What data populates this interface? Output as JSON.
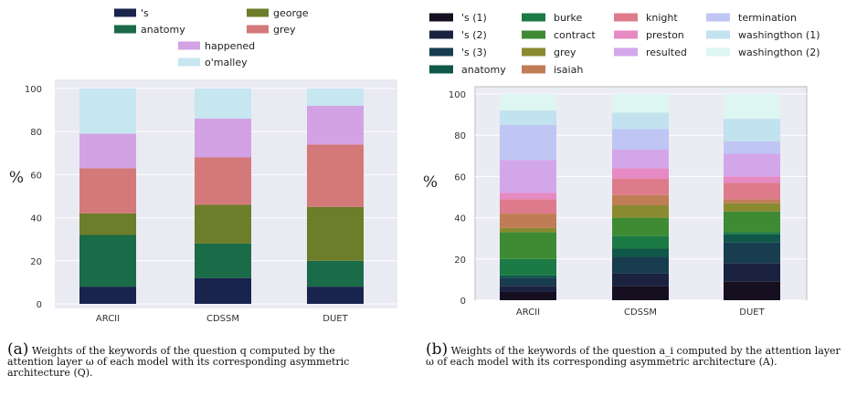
{
  "chart_data": [
    {
      "type": "bar",
      "stacked": true,
      "categories": [
        "ARCII",
        "CDSSM",
        "DUET"
      ],
      "ylabel": "%",
      "ylim": [
        0,
        100
      ],
      "yticks": [
        0,
        20,
        40,
        60,
        80,
        100
      ],
      "grid": true,
      "legend": "top",
      "series": [
        {
          "name": "'s",
          "color": "#18244d",
          "values": [
            8,
            12,
            8
          ]
        },
        {
          "name": "anatomy",
          "color": "#1a6b47",
          "values": [
            24,
            16,
            12
          ]
        },
        {
          "name": "george",
          "color": "#6d7d2a",
          "values": [
            10,
            18,
            25
          ]
        },
        {
          "name": "grey",
          "color": "#d3797a",
          "values": [
            21,
            22,
            29
          ]
        },
        {
          "name": "happened",
          "color": "#d2a2e4",
          "values": [
            16,
            18,
            18
          ]
        },
        {
          "name": "o'malley",
          "color": "#c6e6f0",
          "values": [
            21,
            14,
            8
          ]
        }
      ],
      "caption_label": "(a)",
      "caption_text": "Weights of the keywords of the question q computed by the attention layer ω of each model with its corresponding asymmetric architecture (Q)."
    },
    {
      "type": "bar",
      "stacked": true,
      "categories": [
        "ARCII",
        "CDSSM",
        "DUET"
      ],
      "ylabel": "%",
      "ylim": [
        0,
        100
      ],
      "yticks": [
        0,
        20,
        40,
        60,
        80,
        100
      ],
      "grid": true,
      "legend": "top",
      "series": [
        {
          "name": "'s (1)",
          "color": "#150f1f",
          "values": [
            4,
            7,
            9
          ]
        },
        {
          "name": "'s (2)",
          "color": "#1b2240",
          "values": [
            3,
            6,
            9
          ]
        },
        {
          "name": "'s (3)",
          "color": "#173d4f",
          "values": [
            4,
            8,
            10
          ]
        },
        {
          "name": "anatomy",
          "color": "#0f5748",
          "values": [
            1,
            4,
            4
          ]
        },
        {
          "name": "burke",
          "color": "#1c7a45",
          "values": [
            8,
            6,
            1
          ]
        },
        {
          "name": "contract",
          "color": "#3e8b34",
          "values": [
            13,
            9,
            10
          ]
        },
        {
          "name": "grey",
          "color": "#8a8a30",
          "values": [
            2,
            6,
            4
          ]
        },
        {
          "name": "isaiah",
          "color": "#c07d55",
          "values": [
            7,
            5,
            2
          ]
        },
        {
          "name": "knight",
          "color": "#de7b8b",
          "values": [
            7,
            8,
            8
          ]
        },
        {
          "name": "preston",
          "color": "#e58ac3",
          "values": [
            3,
            5,
            3
          ]
        },
        {
          "name": "resulted",
          "color": "#d3a6ea",
          "values": [
            16,
            9,
            11
          ]
        },
        {
          "name": "termination",
          "color": "#bfc6f3",
          "values": [
            17,
            10,
            6
          ]
        },
        {
          "name": "washingthon (1)",
          "color": "#c2e2ef",
          "values": [
            7,
            8,
            11
          ]
        },
        {
          "name": "washingthon (2)",
          "color": "#def6f2",
          "values": [
            8,
            9,
            12
          ]
        }
      ],
      "caption_label": "(b)",
      "caption_text": "Weights of the keywords of the question a_i computed by the attention layer ω of each model with its corresponding asymmetric architecture (A)."
    }
  ]
}
